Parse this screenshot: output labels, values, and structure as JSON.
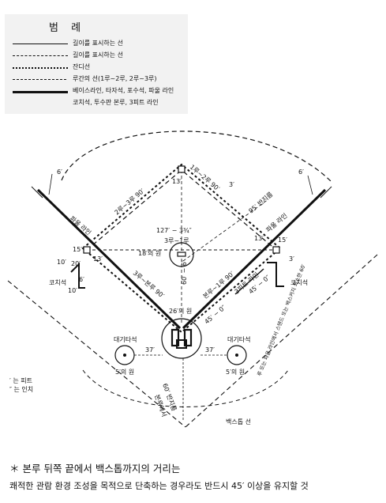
{
  "legend": {
    "title": "범 례",
    "items": [
      {
        "text": "길이를 표시하는 선",
        "style": "solid-thin"
      },
      {
        "text": "길이를 표시하는 선",
        "style": "dashed"
      },
      {
        "text": "잔디선",
        "style": "dotted-bold"
      },
      {
        "text": "루간의 선(1루~2루, 2루~3루)",
        "style": "dash-dot"
      },
      {
        "text": "베이스라인, 타자석, 포수석, 파울 라인",
        "style": "solid-thick"
      },
      {
        "text": "코치석, 투수판 본루, 3피트 라인",
        "style": "none"
      }
    ]
  },
  "diagram": {
    "labels": {
      "first_second": "1루~2루 90′",
      "second_third": "2루~3루 90′",
      "third_home": "3루~본루 90′",
      "home_first": "본루~1루 90′",
      "pitcher_dist": "127′ − 3¾″",
      "third_to_first": "3루~1루",
      "circle_18": "18′의 원",
      "circle_26": "26′의 원",
      "circle_5_left": "5′의 원",
      "circle_5_right": "5′의 원",
      "radius_95": "95′ 반지름",
      "radius_60": "60′ 반지름",
      "home_plate": "본루에서",
      "foul_left": "파울 라인",
      "foul_right": "파울 라인",
      "coach_left": "코치석",
      "coach_right": "코치석",
      "ondeck_left": "대기타석",
      "ondeck_right": "대기타석",
      "three_ft_line": "3피트 라인",
      "backstop": "백스톱 선",
      "side_note": "루 또는 파울 라인에서 스탠드 또는 백스커지 최소한 60′",
      "pitch_60_6": "60′ − 6″",
      "dist_37_left": "37′",
      "dist_37_right": "37′",
      "dist_45_0": "45′ − 0″",
      "dist_45_0_b": "45′ − 0″",
      "d_6_top_left": "6′",
      "d_6_top_right": "6′",
      "d_13_top": "13′",
      "d_3_top": "3′",
      "d_13_left": "13′",
      "d_15_left": "15′",
      "d_13_right": "13′",
      "d_10_a": "10′",
      "d_20": "20′",
      "d_6_mid": "6′",
      "d_10_b": "10′",
      "d_3_right": "3′",
      "d_15_right": "15′"
    }
  },
  "notes": {
    "units_feet": "′ 는 피트",
    "units_inch": "″ 는 인치"
  },
  "footnote": {
    "line1": "＊ 본루 뒤쪽 끝에서 백스톱까지의 거리는",
    "line2": "   쾌적한 관람 환경 조성을 목적으로 단축하는 경우라도 반드시 45′ 이상을 유지할 것"
  }
}
